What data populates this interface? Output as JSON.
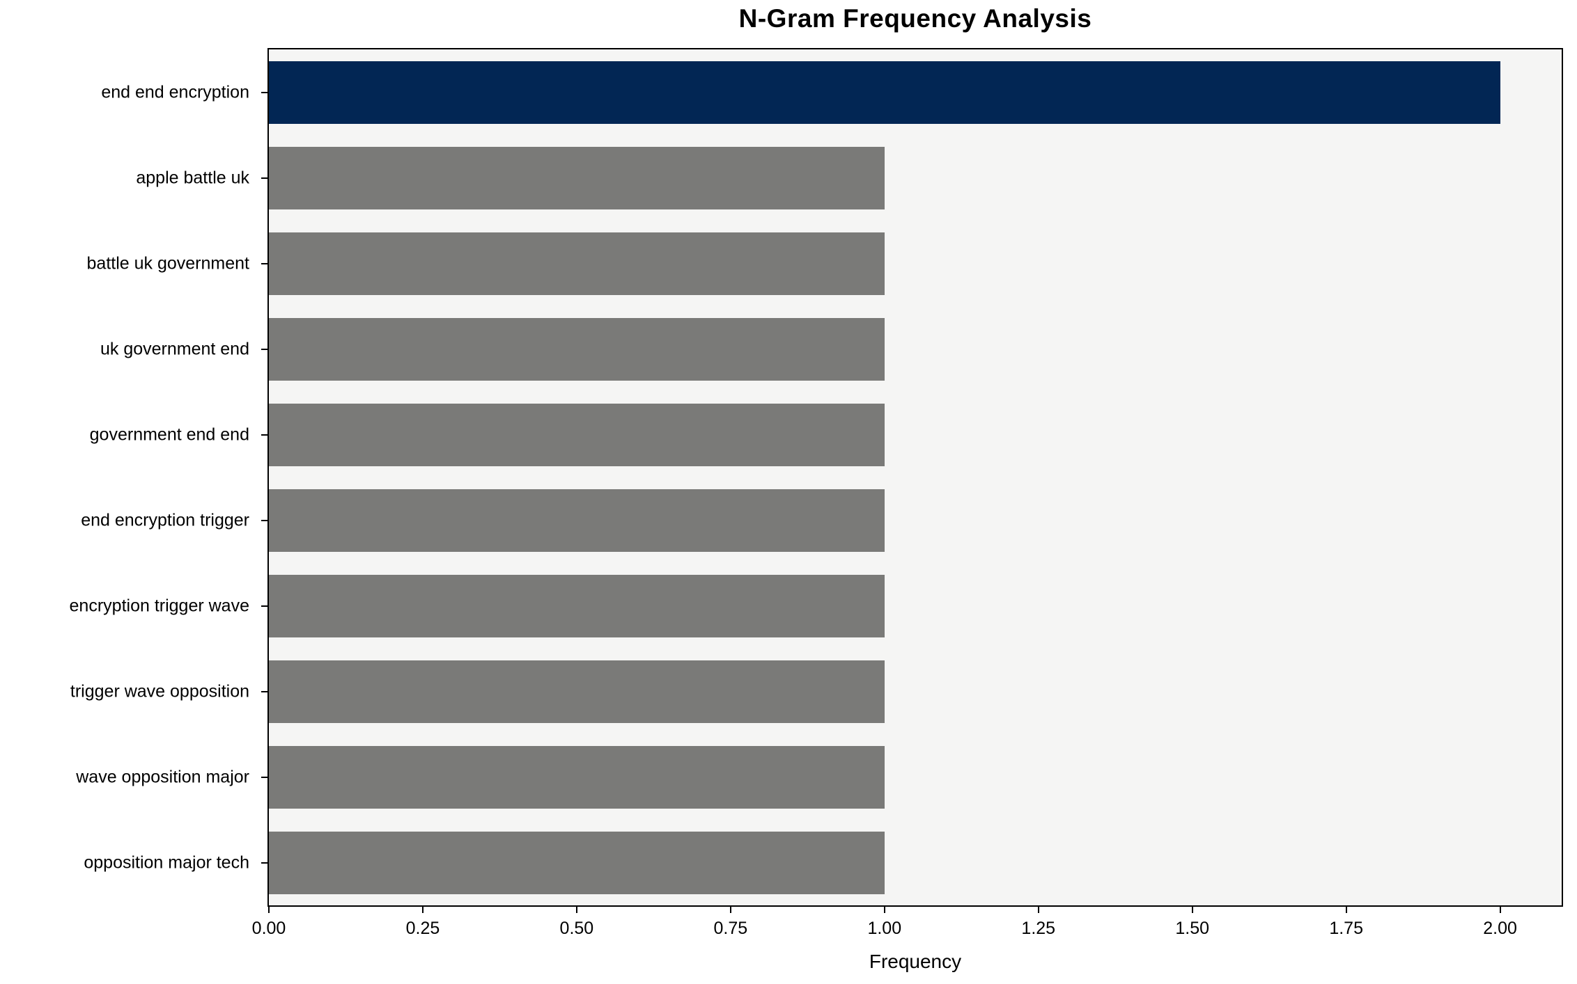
{
  "chart_data": {
    "type": "bar",
    "orientation": "horizontal",
    "title": "N-Gram Frequency Analysis",
    "xlabel": "Frequency",
    "ylabel": "",
    "categories": [
      "end end encryption",
      "apple battle uk",
      "battle uk government",
      "uk government end",
      "government end end",
      "end encryption trigger",
      "encryption trigger wave",
      "trigger wave opposition",
      "wave opposition major",
      "opposition major tech"
    ],
    "values": [
      2,
      1,
      1,
      1,
      1,
      1,
      1,
      1,
      1,
      1
    ],
    "bar_colors": [
      "#022654",
      "#7a7a78",
      "#7a7a78",
      "#7a7a78",
      "#7a7a78",
      "#7a7a78",
      "#7a7a78",
      "#7a7a78",
      "#7a7a78",
      "#7a7a78"
    ],
    "xlim": [
      0,
      2.1
    ],
    "xticks": [
      0,
      0.25,
      0.5,
      0.75,
      1.0,
      1.25,
      1.5,
      1.75,
      2.0
    ],
    "xtick_labels": [
      "0.00",
      "0.25",
      "0.50",
      "0.75",
      "1.00",
      "1.25",
      "1.50",
      "1.75",
      "2.00"
    ],
    "grid": false,
    "legend": "none",
    "colors": {
      "highlight": "#022654",
      "default": "#7a7a78",
      "plot_background": "#f5f5f4",
      "axis": "#000000"
    }
  }
}
